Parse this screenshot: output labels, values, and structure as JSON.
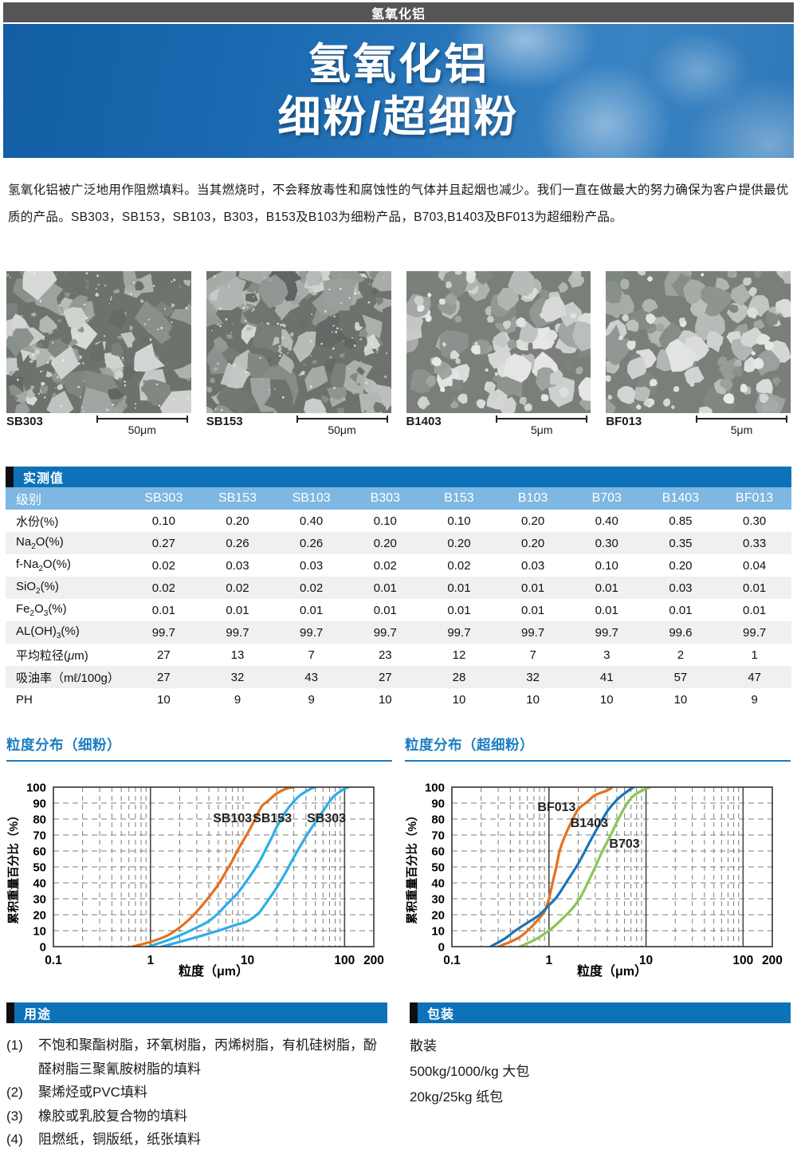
{
  "top_bar": {
    "label": "氢氧化铝"
  },
  "banner": {
    "line1": "氢氧化铝",
    "line2": "细粉/超细粉"
  },
  "intro": {
    "text": "氢氧化铝被广泛地用作阻燃填料。当其燃烧时，不会释放毒性和腐蚀性的气体并且起烟也减少。我们一直在做最大的努力确保为客户提供最优质的产品。SB303，SB153，SB103，B303，B153及B103为细粉产品，B703,B1403及BF013为超细粉产品。"
  },
  "sem_images": [
    {
      "name": "SB303",
      "scale": "50μm",
      "type": "fine"
    },
    {
      "name": "SB153",
      "scale": "50μm",
      "type": "fine"
    },
    {
      "name": "B1403",
      "scale": "5μm",
      "type": "ultra"
    },
    {
      "name": "BF013",
      "scale": "5μm",
      "type": "ultra"
    }
  ],
  "table": {
    "section_title": "实测值",
    "header": [
      "级别",
      "SB303",
      "SB153",
      "SB103",
      "B303",
      "B153",
      "B103",
      "B703",
      "B1403",
      "BF013"
    ],
    "rows": [
      {
        "label": [
          {
            "t": "水份(%)"
          }
        ],
        "values": [
          "0.10",
          "0.20",
          "0.40",
          "0.10",
          "0.10",
          "0.20",
          "0.40",
          "0.85",
          "0.30"
        ]
      },
      {
        "label": [
          {
            "t": "Na"
          },
          {
            "t": "2",
            "sub": true
          },
          {
            "t": "O(%)"
          }
        ],
        "values": [
          "0.27",
          "0.26",
          "0.26",
          "0.20",
          "0.20",
          "0.20",
          "0.30",
          "0.35",
          "0.33"
        ]
      },
      {
        "label": [
          {
            "t": "f-Na"
          },
          {
            "t": "2",
            "sub": true
          },
          {
            "t": "O(%)"
          }
        ],
        "values": [
          "0.02",
          "0.03",
          "0.03",
          "0.02",
          "0.02",
          "0.03",
          "0.10",
          "0.20",
          "0.04"
        ]
      },
      {
        "label": [
          {
            "t": "SiO"
          },
          {
            "t": "2",
            "sub": true
          },
          {
            "t": "(%)"
          }
        ],
        "values": [
          "0.02",
          "0.02",
          "0.02",
          "0.01",
          "0.01",
          "0.01",
          "0.01",
          "0.03",
          "0.01"
        ]
      },
      {
        "label": [
          {
            "t": "Fe"
          },
          {
            "t": "2",
            "sub": true
          },
          {
            "t": "O"
          },
          {
            "t": "3",
            "sub": true
          },
          {
            "t": "(%)"
          }
        ],
        "values": [
          "0.01",
          "0.01",
          "0.01",
          "0.01",
          "0.01",
          "0.01",
          "0.01",
          "0.01",
          "0.01"
        ]
      },
      {
        "label": [
          {
            "t": "AL(OH)"
          },
          {
            "t": "3",
            "sub": true
          },
          {
            "t": "(%)"
          }
        ],
        "values": [
          "99.7",
          "99.7",
          "99.7",
          "99.7",
          "99.7",
          "99.7",
          "99.7",
          "99.6",
          "99.7"
        ]
      },
      {
        "label": [
          {
            "t": "平均粒径("
          },
          {
            "t": "μ",
            "i": true
          },
          {
            "t": "m)"
          }
        ],
        "values": [
          "27",
          "13",
          "7",
          "23",
          "12",
          "7",
          "3",
          "2",
          "1"
        ]
      },
      {
        "label": [
          {
            "t": "吸油率（mℓ/100g）"
          }
        ],
        "values": [
          "27",
          "32",
          "43",
          "27",
          "28",
          "32",
          "41",
          "57",
          "47"
        ]
      },
      {
        "label": [
          {
            "t": "PH"
          }
        ],
        "values": [
          "10",
          "9",
          "9",
          "10",
          "10",
          "10",
          "10",
          "10",
          "9"
        ]
      }
    ]
  },
  "chart_data": [
    {
      "type": "line",
      "title": "粒度分布（细粉）",
      "xlabel": "粒度（μm）",
      "ylabel": "累积重量百分比（%）",
      "x_scale": "log",
      "xlim": [
        0.1,
        200
      ],
      "ylim": [
        0,
        100
      ],
      "y_step": 10,
      "x_ticks": [
        0.1,
        1,
        10,
        100,
        200
      ],
      "solid_verticals": [
        1,
        100
      ],
      "grid": "dashed",
      "series": [
        {
          "name": "SB103",
          "color": "#e4711e",
          "label_at": [
            7,
            78
          ],
          "points": [
            [
              0.65,
              0
            ],
            [
              1,
              3
            ],
            [
              1.5,
              7
            ],
            [
              2,
              12
            ],
            [
              2.5,
              17
            ],
            [
              3,
              22
            ],
            [
              4,
              31
            ],
            [
              5,
              39
            ],
            [
              6,
              47
            ],
            [
              7,
              54
            ],
            [
              8,
              61
            ],
            [
              10,
              71
            ],
            [
              12,
              80
            ],
            [
              14,
              88
            ],
            [
              16,
              91
            ],
            [
              20,
              96
            ],
            [
              25,
              99
            ],
            [
              30,
              100
            ]
          ]
        },
        {
          "name": "SB153",
          "color": "#2caee8",
          "label_at": [
            18,
            78
          ],
          "points": [
            [
              0.95,
              0
            ],
            [
              1.5,
              4
            ],
            [
              2,
              7
            ],
            [
              3,
              12
            ],
            [
              4,
              16
            ],
            [
              5,
              21
            ],
            [
              6,
              26
            ],
            [
              8,
              34
            ],
            [
              10,
              42
            ],
            [
              12,
              49
            ],
            [
              14,
              56
            ],
            [
              16,
              63
            ],
            [
              18,
              69
            ],
            [
              20,
              75
            ],
            [
              25,
              85
            ],
            [
              30,
              91
            ],
            [
              35,
              95
            ],
            [
              45,
              99
            ],
            [
              50,
              100
            ]
          ]
        },
        {
          "name": "SB303",
          "color": "#2caee8",
          "label_at": [
            65,
            78
          ],
          "points": [
            [
              1.3,
              0
            ],
            [
              2,
              3
            ],
            [
              3,
              6
            ],
            [
              5,
              10
            ],
            [
              7,
              13
            ],
            [
              10,
              16
            ],
            [
              13,
              21
            ],
            [
              15,
              26
            ],
            [
              20,
              37
            ],
            [
              25,
              47
            ],
            [
              30,
              56
            ],
            [
              40,
              69
            ],
            [
              50,
              78
            ],
            [
              60,
              85
            ],
            [
              70,
              91
            ],
            [
              80,
              95
            ],
            [
              100,
              99
            ],
            [
              110,
              100
            ]
          ]
        }
      ]
    },
    {
      "type": "line",
      "title": "粒度分布（超细粉）",
      "xlabel": "粒度（μm）",
      "ylabel": "累积重量百分比（%）",
      "x_scale": "log",
      "xlim": [
        0.1,
        200
      ],
      "ylim": [
        0,
        100
      ],
      "y_step": 10,
      "x_ticks": [
        0.1,
        1,
        10,
        100,
        200
      ],
      "solid_verticals": [
        1,
        10,
        100
      ],
      "grid": "dashed",
      "series": [
        {
          "name": "BF013",
          "color": "#e4711e",
          "label_at": [
            1.2,
            85
          ],
          "points": [
            [
              0.3,
              0
            ],
            [
              0.4,
              3
            ],
            [
              0.5,
              6
            ],
            [
              0.6,
              10
            ],
            [
              0.7,
              14
            ],
            [
              0.8,
              18
            ],
            [
              0.9,
              22
            ],
            [
              1.0,
              30
            ],
            [
              1.1,
              41
            ],
            [
              1.2,
              51
            ],
            [
              1.3,
              61
            ],
            [
              1.5,
              71
            ],
            [
              1.7,
              78
            ],
            [
              2,
              86
            ],
            [
              2.5,
              91
            ],
            [
              3,
              95
            ],
            [
              4,
              98
            ],
            [
              4.5,
              100
            ]
          ]
        },
        {
          "name": "B1403",
          "color": "#1b74b8",
          "label_at": [
            2.6,
            75
          ],
          "points": [
            [
              0.25,
              0
            ],
            [
              0.35,
              5
            ],
            [
              0.45,
              10
            ],
            [
              0.6,
              15
            ],
            [
              0.8,
              20
            ],
            [
              1.0,
              26
            ],
            [
              1.2,
              31
            ],
            [
              1.5,
              40
            ],
            [
              2,
              52
            ],
            [
              2.5,
              63
            ],
            [
              3,
              72
            ],
            [
              3.5,
              79
            ],
            [
              4,
              85
            ],
            [
              5,
              92
            ],
            [
              6,
              96
            ],
            [
              7,
              99
            ],
            [
              7.5,
              100
            ]
          ]
        },
        {
          "name": "B703",
          "color": "#8cc551",
          "label_at": [
            6,
            62
          ],
          "points": [
            [
              0.5,
              0
            ],
            [
              0.7,
              4
            ],
            [
              0.9,
              8
            ],
            [
              1.1,
              12
            ],
            [
              1.4,
              18
            ],
            [
              1.8,
              25
            ],
            [
              2.2,
              33
            ],
            [
              2.6,
              42
            ],
            [
              3,
              50
            ],
            [
              3.5,
              59
            ],
            [
              4,
              66
            ],
            [
              4.5,
              72
            ],
            [
              5,
              78
            ],
            [
              6,
              87
            ],
            [
              7,
              93
            ],
            [
              8,
              96
            ],
            [
              10,
              99
            ],
            [
              11,
              100
            ]
          ]
        }
      ]
    }
  ],
  "uses": {
    "title": "用途",
    "items": [
      {
        "num": "(1)",
        "text": "不饱和聚酯树脂，环氧树脂，丙烯树脂，有机硅树脂，酚醛树脂三聚氰胺树脂的填料"
      },
      {
        "num": "(2)",
        "text": "聚烯烃或PVC填料"
      },
      {
        "num": "(3)",
        "text": "橡胶或乳胶复合物的填料"
      },
      {
        "num": "(4)",
        "text": "阻燃纸，铜版纸，纸张填料"
      }
    ]
  },
  "packaging": {
    "title": "包装",
    "items": [
      "散装",
      "500kg/1000/kg 大包",
      "20kg/25kg 纸包"
    ]
  },
  "colors": {
    "accent_blue": "#0d72b8",
    "title_blue": "#1b7dc1",
    "table_head_blue": "#7db7e2",
    "row_alt_gray": "#f0f0f0",
    "top_bar_gray": "#575456",
    "curve_orange": "#e4711e",
    "curve_cyan": "#2caee8",
    "curve_blue": "#1b74b8",
    "curve_green": "#8cc551"
  }
}
